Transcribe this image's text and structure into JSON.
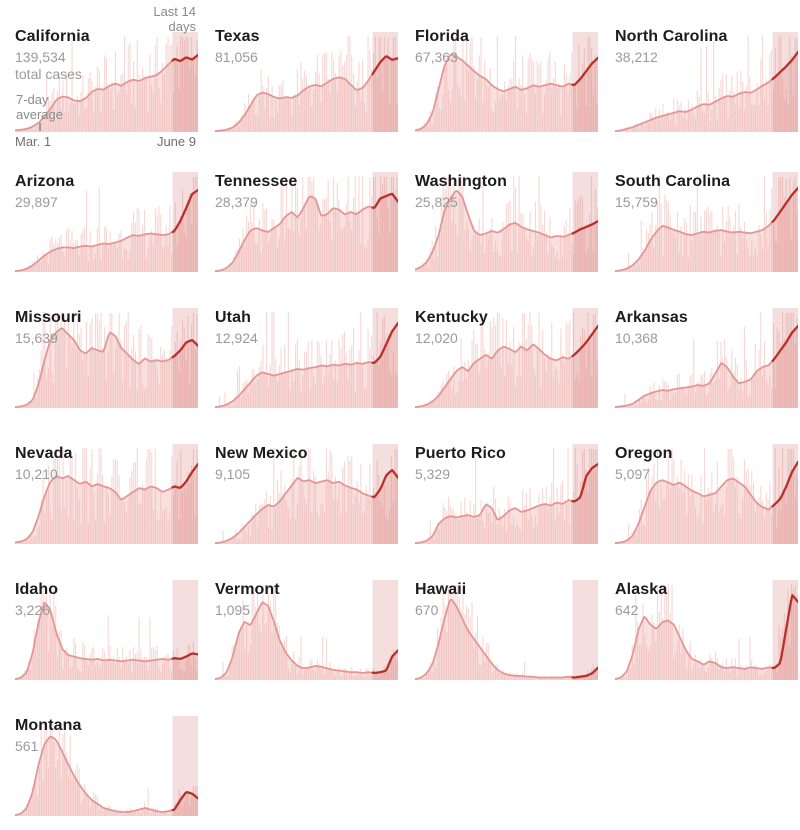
{
  "page": {
    "background": "#ffffff"
  },
  "annotations": {
    "last14": "Last 14\ndays",
    "seven_day_average": "7-day\naverage",
    "axis_start": "Mar. 1",
    "axis_end": "June 9",
    "total_cases_label": "total cases"
  },
  "colors": {
    "area": "#f8e0de",
    "bar": "#eaa7a3",
    "line": "#e29795",
    "line_dark": "#b7312a",
    "shade": "rgba(199,96,92,0.20)",
    "title": "#1c1c1c",
    "value": "#9b9b9b",
    "annotation": "#8a8a8a",
    "axis": "#6f6f6f"
  },
  "chart_data": {
    "type": "area",
    "subtype": "small-multiples-daily-bars-with-7-day-average",
    "date_start": "Mar. 1",
    "date_end": "June 9",
    "days": 101,
    "highlight_label": "Last 14 days",
    "highlight_days": 14,
    "highlight_start_frac": 0.861,
    "states": [
      {
        "name": "California",
        "total": 139534,
        "total_display": "139,534",
        "line_max": 0.77,
        "seed": 1,
        "line": [
          0.02,
          0.03,
          0.04,
          0.07,
          0.12,
          0.2,
          0.3,
          0.42,
          0.46,
          0.45,
          0.41,
          0.4,
          0.44,
          0.52,
          0.56,
          0.55,
          0.6,
          0.63,
          0.6,
          0.65,
          0.68,
          0.66,
          0.7,
          0.72,
          0.74,
          0.8,
          0.88,
          0.95,
          0.92,
          0.97,
          0.94,
          1.0
        ]
      },
      {
        "name": "Texas",
        "total": 81056,
        "total_display": "81,056",
        "line_max": 0.76,
        "seed": 2,
        "line": [
          0.01,
          0.02,
          0.03,
          0.06,
          0.12,
          0.22,
          0.35,
          0.48,
          0.52,
          0.5,
          0.46,
          0.44,
          0.46,
          0.45,
          0.48,
          0.55,
          0.6,
          0.62,
          0.6,
          0.65,
          0.7,
          0.72,
          0.7,
          0.62,
          0.55,
          0.58,
          0.68,
          0.8,
          0.92,
          1.0,
          0.95,
          0.97
        ]
      },
      {
        "name": "Florida",
        "total": 67363,
        "total_display": "67,363",
        "line_max": 0.78,
        "seed": 3,
        "line": [
          0.02,
          0.04,
          0.1,
          0.25,
          0.55,
          0.85,
          1.0,
          0.97,
          0.92,
          0.85,
          0.78,
          0.72,
          0.68,
          0.6,
          0.55,
          0.52,
          0.55,
          0.58,
          0.54,
          0.56,
          0.6,
          0.58,
          0.6,
          0.62,
          0.6,
          0.58,
          0.62,
          0.6,
          0.68,
          0.78,
          0.88,
          0.95
        ]
      },
      {
        "name": "North Carolina",
        "total": 38212,
        "total_display": "38,212",
        "line_max": 0.8,
        "seed": 4,
        "line": [
          0.01,
          0.02,
          0.04,
          0.06,
          0.09,
          0.12,
          0.15,
          0.18,
          0.2,
          0.22,
          0.24,
          0.26,
          0.25,
          0.28,
          0.32,
          0.35,
          0.34,
          0.38,
          0.42,
          0.45,
          0.44,
          0.48,
          0.5,
          0.49,
          0.53,
          0.58,
          0.62,
          0.68,
          0.75,
          0.82,
          0.9,
          1.0
        ]
      },
      {
        "name": "Arizona",
        "total": 29897,
        "total_display": "29,897",
        "line_max": 0.82,
        "seed": 5,
        "line": [
          0.01,
          0.02,
          0.04,
          0.08,
          0.14,
          0.2,
          0.25,
          0.28,
          0.3,
          0.3,
          0.29,
          0.31,
          0.32,
          0.31,
          0.33,
          0.35,
          0.34,
          0.36,
          0.38,
          0.42,
          0.45,
          0.44,
          0.46,
          0.47,
          0.46,
          0.45,
          0.46,
          0.5,
          0.62,
          0.78,
          0.95,
          1.0
        ]
      },
      {
        "name": "Tennessee",
        "total": 28379,
        "total_display": "28,379",
        "line_max": 0.8,
        "seed": 6,
        "line": [
          0.01,
          0.02,
          0.05,
          0.12,
          0.25,
          0.4,
          0.52,
          0.55,
          0.52,
          0.5,
          0.55,
          0.6,
          0.7,
          0.75,
          0.68,
          0.8,
          0.95,
          0.92,
          0.7,
          0.72,
          0.8,
          0.78,
          0.72,
          0.75,
          0.72,
          0.78,
          0.82,
          0.8,
          0.92,
          0.95,
          0.98,
          0.88
        ]
      },
      {
        "name": "Washington",
        "total": 25825,
        "total_display": "25,825",
        "line_max": 0.82,
        "seed": 7,
        "line": [
          0.03,
          0.06,
          0.12,
          0.25,
          0.45,
          0.75,
          0.9,
          1.0,
          0.92,
          0.7,
          0.5,
          0.45,
          0.47,
          0.5,
          0.48,
          0.52,
          0.58,
          0.6,
          0.55,
          0.52,
          0.5,
          0.48,
          0.45,
          0.42,
          0.44,
          0.43,
          0.45,
          0.48,
          0.52,
          0.55,
          0.58,
          0.62
        ]
      },
      {
        "name": "South Carolina",
        "total": 15759,
        "total_display": "15,759",
        "line_max": 0.84,
        "seed": 8,
        "line": [
          0.01,
          0.02,
          0.04,
          0.08,
          0.15,
          0.25,
          0.38,
          0.48,
          0.55,
          0.53,
          0.5,
          0.48,
          0.45,
          0.44,
          0.46,
          0.48,
          0.47,
          0.49,
          0.5,
          0.48,
          0.47,
          0.48,
          0.47,
          0.46,
          0.48,
          0.5,
          0.55,
          0.62,
          0.72,
          0.82,
          0.92,
          1.0
        ]
      },
      {
        "name": "Missouri",
        "total": 15639,
        "total_display": "15,639",
        "line_max": 0.8,
        "seed": 9,
        "line": [
          0.01,
          0.02,
          0.04,
          0.1,
          0.3,
          0.6,
          0.85,
          0.95,
          1.0,
          0.92,
          0.85,
          0.72,
          0.68,
          0.75,
          0.72,
          0.7,
          0.95,
          0.9,
          0.75,
          0.68,
          0.6,
          0.55,
          0.62,
          0.58,
          0.6,
          0.58,
          0.6,
          0.65,
          0.72,
          0.82,
          0.85,
          0.78
        ]
      },
      {
        "name": "Utah",
        "total": 12924,
        "total_display": "12,924",
        "line_max": 0.85,
        "seed": 10,
        "line": [
          0.01,
          0.02,
          0.04,
          0.08,
          0.14,
          0.22,
          0.3,
          0.38,
          0.42,
          0.4,
          0.38,
          0.4,
          0.42,
          0.44,
          0.46,
          0.45,
          0.47,
          0.48,
          0.5,
          0.49,
          0.51,
          0.5,
          0.52,
          0.51,
          0.53,
          0.52,
          0.54,
          0.53,
          0.6,
          0.75,
          0.9,
          1.0
        ]
      },
      {
        "name": "Kentucky",
        "total": 12020,
        "total_display": "12,020",
        "line_max": 0.82,
        "seed": 11,
        "line": [
          0.01,
          0.02,
          0.04,
          0.08,
          0.15,
          0.25,
          0.35,
          0.45,
          0.5,
          0.45,
          0.55,
          0.6,
          0.65,
          0.6,
          0.7,
          0.75,
          0.72,
          0.68,
          0.75,
          0.7,
          0.78,
          0.72,
          0.65,
          0.6,
          0.58,
          0.62,
          0.6,
          0.65,
          0.72,
          0.8,
          0.9,
          1.0
        ]
      },
      {
        "name": "Arkansas",
        "total": 10368,
        "total_display": "10,368",
        "line_max": 0.82,
        "seed": 12,
        "line": [
          0.01,
          0.02,
          0.03,
          0.05,
          0.1,
          0.15,
          0.18,
          0.2,
          0.22,
          0.21,
          0.23,
          0.24,
          0.25,
          0.26,
          0.28,
          0.27,
          0.3,
          0.42,
          0.55,
          0.5,
          0.38,
          0.3,
          0.32,
          0.35,
          0.45,
          0.5,
          0.52,
          0.6,
          0.7,
          0.8,
          0.92,
          1.0
        ]
      },
      {
        "name": "Nevada",
        "total": 10210,
        "total_display": "10,210",
        "line_max": 0.8,
        "seed": 13,
        "line": [
          0.02,
          0.03,
          0.06,
          0.15,
          0.35,
          0.6,
          0.78,
          0.85,
          0.82,
          0.85,
          0.8,
          0.75,
          0.78,
          0.72,
          0.75,
          0.72,
          0.7,
          0.65,
          0.55,
          0.6,
          0.65,
          0.7,
          0.68,
          0.72,
          0.7,
          0.65,
          0.68,
          0.72,
          0.7,
          0.78,
          0.9,
          1.0
        ]
      },
      {
        "name": "New Mexico",
        "total": 9105,
        "total_display": "9,105",
        "line_max": 0.78,
        "seed": 14,
        "line": [
          0.01,
          0.02,
          0.04,
          0.08,
          0.14,
          0.22,
          0.3,
          0.38,
          0.45,
          0.5,
          0.48,
          0.55,
          0.65,
          0.75,
          0.85,
          0.8,
          0.82,
          0.78,
          0.8,
          0.82,
          0.78,
          0.8,
          0.75,
          0.72,
          0.7,
          0.65,
          0.62,
          0.6,
          0.7,
          0.88,
          0.95,
          0.85
        ]
      },
      {
        "name": "Puerto Rico",
        "total": 5329,
        "total_display": "5,329",
        "line_max": 0.8,
        "seed": 15,
        "line": [
          0.01,
          0.02,
          0.04,
          0.1,
          0.25,
          0.32,
          0.35,
          0.33,
          0.35,
          0.36,
          0.34,
          0.36,
          0.5,
          0.45,
          0.3,
          0.35,
          0.42,
          0.45,
          0.4,
          0.42,
          0.45,
          0.48,
          0.5,
          0.48,
          0.52,
          0.5,
          0.55,
          0.53,
          0.58,
          0.85,
          0.95,
          1.0
        ]
      },
      {
        "name": "Oregon",
        "total": 5097,
        "total_display": "5,097",
        "line_max": 0.82,
        "seed": 16,
        "line": [
          0.01,
          0.02,
          0.04,
          0.1,
          0.25,
          0.45,
          0.65,
          0.75,
          0.78,
          0.75,
          0.72,
          0.75,
          0.7,
          0.65,
          0.62,
          0.58,
          0.6,
          0.62,
          0.7,
          0.78,
          0.8,
          0.75,
          0.7,
          0.6,
          0.5,
          0.45,
          0.42,
          0.48,
          0.55,
          0.7,
          0.88,
          1.0
        ]
      },
      {
        "name": "Idaho",
        "total": 3226,
        "total_display": "3,226",
        "line_max": 0.78,
        "seed": 17,
        "line": [
          0.01,
          0.03,
          0.1,
          0.35,
          0.75,
          1.0,
          0.9,
          0.6,
          0.4,
          0.32,
          0.3,
          0.28,
          0.27,
          0.26,
          0.27,
          0.25,
          0.26,
          0.25,
          0.24,
          0.25,
          0.26,
          0.25,
          0.24,
          0.25,
          0.26,
          0.27,
          0.26,
          0.28,
          0.27,
          0.3,
          0.34,
          0.33
        ]
      },
      {
        "name": "Vermont",
        "total": 1095,
        "total_display": "1,095",
        "line_max": 0.78,
        "seed": 18,
        "line": [
          0.01,
          0.03,
          0.1,
          0.3,
          0.6,
          0.75,
          0.7,
          0.85,
          1.0,
          0.95,
          0.75,
          0.5,
          0.35,
          0.25,
          0.18,
          0.15,
          0.16,
          0.18,
          0.17,
          0.15,
          0.13,
          0.12,
          0.11,
          0.1,
          0.1,
          0.09,
          0.1,
          0.09,
          0.1,
          0.12,
          0.3,
          0.38
        ]
      },
      {
        "name": "Hawaii",
        "total": 670,
        "total_display": "670",
        "line_max": 0.82,
        "seed": 19,
        "line": [
          0.01,
          0.03,
          0.08,
          0.2,
          0.45,
          0.75,
          1.0,
          0.9,
          0.75,
          0.6,
          0.5,
          0.4,
          0.3,
          0.2,
          0.12,
          0.08,
          0.06,
          0.05,
          0.05,
          0.04,
          0.04,
          0.03,
          0.03,
          0.03,
          0.03,
          0.03,
          0.04,
          0.03,
          0.04,
          0.05,
          0.08,
          0.15
        ]
      },
      {
        "name": "Alaska",
        "total": 642,
        "total_display": "642",
        "line_max": 0.85,
        "seed": 20,
        "line": [
          0.01,
          0.03,
          0.1,
          0.3,
          0.6,
          0.75,
          0.65,
          0.6,
          0.68,
          0.7,
          0.65,
          0.5,
          0.35,
          0.25,
          0.22,
          0.18,
          0.22,
          0.2,
          0.15,
          0.14,
          0.15,
          0.14,
          0.13,
          0.15,
          0.14,
          0.13,
          0.15,
          0.14,
          0.2,
          0.6,
          1.0,
          0.92
        ]
      },
      {
        "name": "Montana",
        "total": 561,
        "total_display": "561",
        "line_max": 0.8,
        "seed": 21,
        "line": [
          0.01,
          0.03,
          0.1,
          0.3,
          0.65,
          0.9,
          1.0,
          0.95,
          0.8,
          0.65,
          0.5,
          0.38,
          0.28,
          0.2,
          0.15,
          0.1,
          0.08,
          0.06,
          0.05,
          0.05,
          0.06,
          0.08,
          0.1,
          0.08,
          0.06,
          0.05,
          0.06,
          0.08,
          0.2,
          0.3,
          0.28,
          0.22
        ]
      }
    ]
  }
}
